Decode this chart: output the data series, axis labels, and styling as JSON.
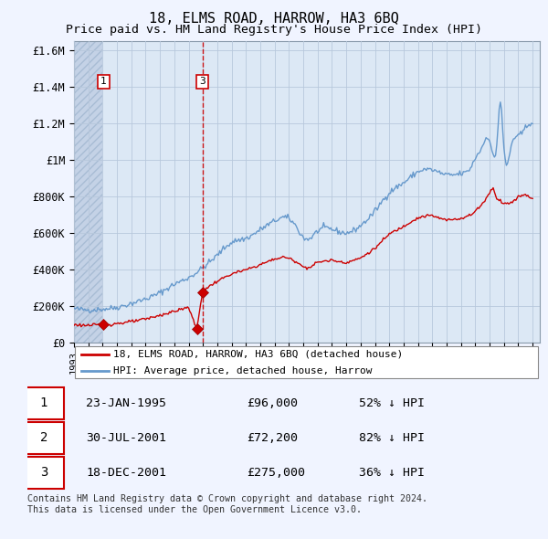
{
  "title": "18, ELMS ROAD, HARROW, HA3 6BQ",
  "subtitle": "Price paid vs. HM Land Registry's House Price Index (HPI)",
  "title_fontsize": 11,
  "subtitle_fontsize": 9.5,
  "ylabel_ticks": [
    "£0",
    "£200K",
    "£400K",
    "£600K",
    "£800K",
    "£1M",
    "£1.2M",
    "£1.4M",
    "£1.6M"
  ],
  "ytick_values": [
    0,
    200000,
    400000,
    600000,
    800000,
    1000000,
    1200000,
    1400000,
    1600000
  ],
  "ylim": [
    0,
    1650000
  ],
  "xlim_start": 1993.0,
  "xlim_end": 2025.5,
  "chart_bg": "#dce8f5",
  "hatch_bg": "#c8d4e8",
  "fig_bg": "#f0f4ff",
  "grid_color": "#b8c8dc",
  "red_line_color": "#cc0000",
  "blue_line_color": "#6699cc",
  "transactions": [
    {
      "date": 1995.07,
      "price": 96000,
      "label": "1"
    },
    {
      "date": 2001.575,
      "price": 72200,
      "label": "2"
    },
    {
      "date": 2001.96,
      "price": 275000,
      "label": "3"
    }
  ],
  "legend_label_red": "18, ELMS ROAD, HARROW, HA3 6BQ (detached house)",
  "legend_label_blue": "HPI: Average price, detached house, Harrow",
  "table_rows": [
    {
      "num": "1",
      "date": "23-JAN-1995",
      "price": "£96,000",
      "hpi": "52% ↓ HPI"
    },
    {
      "num": "2",
      "date": "30-JUL-2001",
      "price": "£72,200",
      "hpi": "82% ↓ HPI"
    },
    {
      "num": "3",
      "date": "18-DEC-2001",
      "price": "£275,000",
      "hpi": "36% ↓ HPI"
    }
  ],
  "footnote": "Contains HM Land Registry data © Crown copyright and database right 2024.\nThis data is licensed under the Open Government Licence v3.0."
}
